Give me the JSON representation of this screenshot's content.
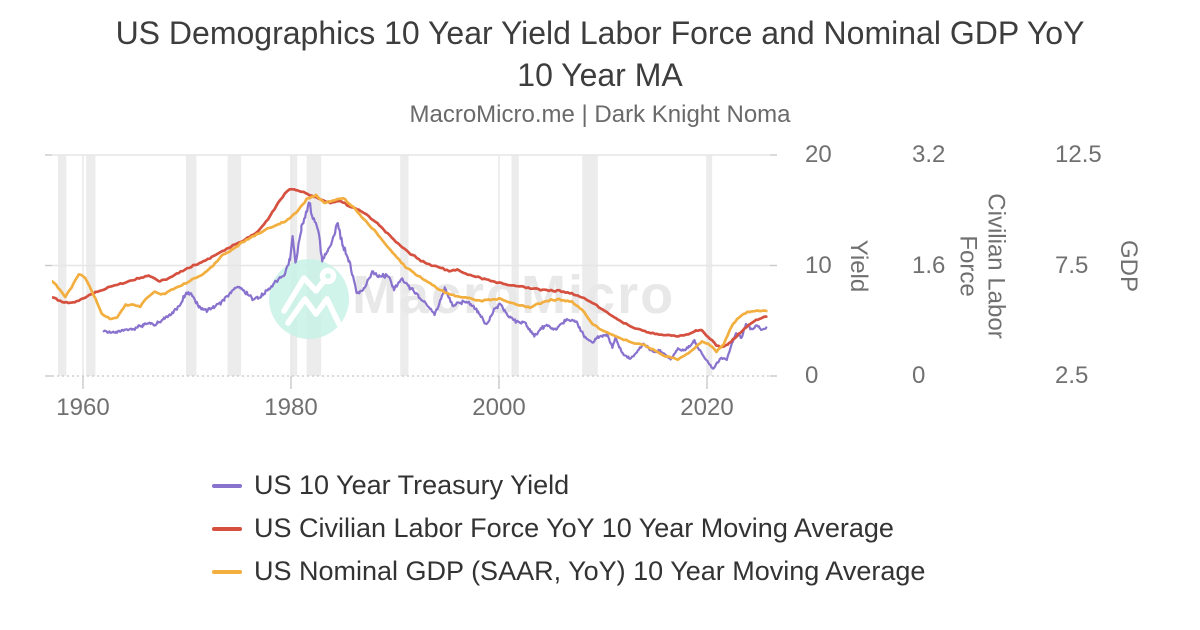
{
  "header": {
    "title": "US Demographics 10 Year Yield Labor Force and Nominal GDP YoY 10 Year MA",
    "subtitle": "MacroMicro.me | Dark Knight Noma"
  },
  "watermark": {
    "text": "MacroMicro",
    "icon": "mountain-peaks-with-sun-logo",
    "circle_color": "#c9f2e6",
    "text_color": "#e8e8e8"
  },
  "chart_data": {
    "type": "line",
    "title": "US Demographics 10 Year Yield Labor Force and Nominal GDP YoY 10 Year MA",
    "subtitle": "MacroMicro.me | Dark Knight Noma",
    "grid": true,
    "legend_position": "bottom",
    "x_axis": {
      "range": [
        1957.0,
        2026.1
      ],
      "tick_values": [
        1960,
        1980,
        2000,
        2020
      ],
      "tick_labels": [
        "1960",
        "1980",
        "2000",
        "2020"
      ]
    },
    "y_axes": [
      {
        "title": "Yield",
        "range": [
          0,
          20
        ],
        "tick_values": [
          20,
          10,
          0
        ],
        "tick_labels": [
          "20",
          "10",
          "0"
        ]
      },
      {
        "title": "Civilian Labor Force",
        "range": [
          0,
          3.2
        ],
        "tick_values": [
          3.2,
          1.6,
          0
        ],
        "tick_labels": [
          "3.2",
          "1.6",
          "0"
        ]
      },
      {
        "title": "GDP",
        "range": [
          2.5,
          12.5
        ],
        "tick_values": [
          12.5,
          7.5,
          2.5
        ],
        "tick_labels": [
          "12.5",
          "7.5",
          "2.5"
        ]
      }
    ],
    "recession_bands_years": [
      [
        1957.6,
        1958.4
      ],
      [
        1960.3,
        1961.2
      ],
      [
        1969.9,
        1970.9
      ],
      [
        1973.9,
        1975.2
      ],
      [
        1980.0,
        1980.6
      ],
      [
        1981.5,
        1982.9
      ],
      [
        1990.5,
        1991.3
      ],
      [
        2001.2,
        2001.9
      ],
      [
        2008.0,
        2009.5
      ],
      [
        2020.1,
        2020.5
      ]
    ],
    "series": [
      {
        "name": "US 10 Year Treasury Yield",
        "color": "#8872ce",
        "axis": 0,
        "style": "jagged",
        "points": [
          [
            1962,
            4.08
          ],
          [
            1963,
            3.95
          ],
          [
            1963.8,
            4.15
          ],
          [
            1964.8,
            4.2
          ],
          [
            1965.8,
            4.6
          ],
          [
            1966.4,
            4.85
          ],
          [
            1966.9,
            4.6
          ],
          [
            1967.6,
            5.1
          ],
          [
            1968.4,
            5.5
          ],
          [
            1969.3,
            6.3
          ],
          [
            1969.95,
            7.6
          ],
          [
            1970.5,
            7.3
          ],
          [
            1971.2,
            6.2
          ],
          [
            1971.9,
            6.0
          ],
          [
            1972.6,
            6.3
          ],
          [
            1973.6,
            6.9
          ],
          [
            1974.6,
            8.0
          ],
          [
            1975.3,
            7.9
          ],
          [
            1976.3,
            6.9
          ],
          [
            1977.3,
            7.3
          ],
          [
            1978.4,
            8.4
          ],
          [
            1979.4,
            9.2
          ],
          [
            1979.9,
            10.6
          ],
          [
            1980.15,
            12.7
          ],
          [
            1980.45,
            10.3
          ],
          [
            1981.0,
            13.3
          ],
          [
            1981.75,
            15.7
          ],
          [
            1982.2,
            14.2
          ],
          [
            1982.6,
            13.3
          ],
          [
            1983.0,
            10.5
          ],
          [
            1983.6,
            11.3
          ],
          [
            1984.5,
            13.7
          ],
          [
            1985.0,
            11.7
          ],
          [
            1985.6,
            10.4
          ],
          [
            1986.3,
            7.5
          ],
          [
            1987.0,
            7.8
          ],
          [
            1987.8,
            9.4
          ],
          [
            1988.4,
            9.0
          ],
          [
            1989.2,
            9.2
          ],
          [
            1989.9,
            7.9
          ],
          [
            1990.7,
            8.8
          ],
          [
            1991.5,
            7.9
          ],
          [
            1992.3,
            7.2
          ],
          [
            1993.0,
            6.5
          ],
          [
            1993.8,
            5.6
          ],
          [
            1994.8,
            7.9
          ],
          [
            1995.6,
            6.4
          ],
          [
            1996.4,
            6.7
          ],
          [
            1997.2,
            6.6
          ],
          [
            1997.9,
            5.9
          ],
          [
            1998.8,
            4.6
          ],
          [
            1999.6,
            6.1
          ],
          [
            2000.1,
            6.5
          ],
          [
            2000.9,
            5.4
          ],
          [
            2001.7,
            4.9
          ],
          [
            2002.4,
            4.9
          ],
          [
            2003.4,
            3.6
          ],
          [
            2004.0,
            4.3
          ],
          [
            2004.6,
            4.6
          ],
          [
            2005.4,
            4.2
          ],
          [
            2006.5,
            5.1
          ],
          [
            2007.4,
            4.9
          ],
          [
            2008.2,
            3.6
          ],
          [
            2008.9,
            3.0
          ],
          [
            2009.5,
            3.5
          ],
          [
            2010.4,
            3.8
          ],
          [
            2010.9,
            2.6
          ],
          [
            2011.2,
            3.4
          ],
          [
            2011.9,
            2.0
          ],
          [
            2012.6,
            1.55
          ],
          [
            2013.0,
            1.9
          ],
          [
            2013.9,
            2.9
          ],
          [
            2014.8,
            2.2
          ],
          [
            2015.5,
            2.3
          ],
          [
            2016.5,
            1.5
          ],
          [
            2017.2,
            2.45
          ],
          [
            2017.8,
            2.3
          ],
          [
            2018.8,
            3.15
          ],
          [
            2019.7,
            1.7
          ],
          [
            2020.6,
            0.65
          ],
          [
            2021.3,
            1.6
          ],
          [
            2021.9,
            1.5
          ],
          [
            2022.4,
            2.9
          ],
          [
            2022.8,
            3.9
          ],
          [
            2023.3,
            3.5
          ],
          [
            2023.8,
            4.7
          ],
          [
            2024.4,
            4.2
          ],
          [
            2024.8,
            4.5
          ],
          [
            2025.2,
            4.25
          ],
          [
            2025.7,
            4.4
          ]
        ]
      },
      {
        "name": "US Civilian Labor Force YoY 10 Year Moving Average",
        "color": "#d5503f",
        "axis": 1,
        "style": "smooth",
        "points": [
          [
            1957,
            1.14
          ],
          [
            1958,
            1.07
          ],
          [
            1959,
            1.06
          ],
          [
            1960,
            1.12
          ],
          [
            1961,
            1.2
          ],
          [
            1962,
            1.26
          ],
          [
            1963,
            1.31
          ],
          [
            1964,
            1.35
          ],
          [
            1965,
            1.4
          ],
          [
            1966.3,
            1.45
          ],
          [
            1967.4,
            1.37
          ],
          [
            1968.2,
            1.41
          ],
          [
            1969,
            1.48
          ],
          [
            1970,
            1.56
          ],
          [
            1971,
            1.62
          ],
          [
            1972,
            1.69
          ],
          [
            1973,
            1.77
          ],
          [
            1974,
            1.86
          ],
          [
            1975,
            1.93
          ],
          [
            1976,
            2.01
          ],
          [
            1977,
            2.12
          ],
          [
            1977.8,
            2.27
          ],
          [
            1978.6,
            2.47
          ],
          [
            1979.4,
            2.64
          ],
          [
            1979.9,
            2.71
          ],
          [
            1980.6,
            2.69
          ],
          [
            1981.4,
            2.65
          ],
          [
            1982.2,
            2.6
          ],
          [
            1983,
            2.55
          ],
          [
            1983.8,
            2.51
          ],
          [
            1984.8,
            2.53
          ],
          [
            1985.6,
            2.46
          ],
          [
            1986.5,
            2.41
          ],
          [
            1987.5,
            2.31
          ],
          [
            1988.5,
            2.18
          ],
          [
            1989.5,
            2.03
          ],
          [
            1990.5,
            1.89
          ],
          [
            1991.5,
            1.77
          ],
          [
            1992.5,
            1.67
          ],
          [
            1993.5,
            1.6
          ],
          [
            1994.4,
            1.57
          ],
          [
            1995.2,
            1.52
          ],
          [
            1996,
            1.54
          ],
          [
            1997,
            1.47
          ],
          [
            1998,
            1.43
          ],
          [
            1999,
            1.39
          ],
          [
            2000,
            1.35
          ],
          [
            2001,
            1.32
          ],
          [
            2002,
            1.3
          ],
          [
            2003,
            1.27
          ],
          [
            2004,
            1.25
          ],
          [
            2005,
            1.24
          ],
          [
            2006,
            1.23
          ],
          [
            2007,
            1.19
          ],
          [
            2008,
            1.14
          ],
          [
            2009,
            1.06
          ],
          [
            2010,
            0.96
          ],
          [
            2011,
            0.86
          ],
          [
            2012,
            0.77
          ],
          [
            2013,
            0.7
          ],
          [
            2014,
            0.65
          ],
          [
            2015,
            0.61
          ],
          [
            2016,
            0.59
          ],
          [
            2017,
            0.58
          ],
          [
            2018,
            0.59
          ],
          [
            2018.9,
            0.65
          ],
          [
            2019.5,
            0.66
          ],
          [
            2020.3,
            0.54
          ],
          [
            2020.9,
            0.45
          ],
          [
            2021.4,
            0.42
          ],
          [
            2022.1,
            0.47
          ],
          [
            2023,
            0.6
          ],
          [
            2024,
            0.74
          ],
          [
            2024.7,
            0.81
          ],
          [
            2025.7,
            0.86
          ]
        ]
      },
      {
        "name": "US Nominal GDP (SAAR, YoY) 10 Year Moving Average",
        "color": "#f2ae3e",
        "axis": 2,
        "style": "smooth",
        "points": [
          [
            1957,
            6.8
          ],
          [
            1957.6,
            6.5
          ],
          [
            1958.3,
            6.08
          ],
          [
            1958.9,
            6.5
          ],
          [
            1959.6,
            7.12
          ],
          [
            1960.2,
            6.95
          ],
          [
            1961,
            6.2
          ],
          [
            1961.8,
            5.35
          ],
          [
            1962.6,
            5.07
          ],
          [
            1963.3,
            5.15
          ],
          [
            1964.1,
            5.7
          ],
          [
            1964.9,
            5.72
          ],
          [
            1965.5,
            5.65
          ],
          [
            1966.2,
            6.05
          ],
          [
            1966.9,
            6.3
          ],
          [
            1967.7,
            6.2
          ],
          [
            1968.5,
            6.4
          ],
          [
            1969.5,
            6.6
          ],
          [
            1970.5,
            6.85
          ],
          [
            1971.5,
            7.1
          ],
          [
            1972.5,
            7.5
          ],
          [
            1973.5,
            8.0
          ],
          [
            1974.5,
            8.25
          ],
          [
            1975.5,
            8.6
          ],
          [
            1976.5,
            8.85
          ],
          [
            1977.5,
            9.1
          ],
          [
            1978.5,
            9.3
          ],
          [
            1979.5,
            9.5
          ],
          [
            1980.5,
            9.9
          ],
          [
            1981.6,
            10.55
          ],
          [
            1982.4,
            10.68
          ],
          [
            1983.2,
            10.35
          ],
          [
            1984.2,
            10.45
          ],
          [
            1985.0,
            10.55
          ],
          [
            1986.0,
            10.15
          ],
          [
            1987,
            9.6
          ],
          [
            1988,
            9.1
          ],
          [
            1989,
            8.5
          ],
          [
            1990,
            7.95
          ],
          [
            1991,
            7.45
          ],
          [
            1992,
            7.1
          ],
          [
            1993,
            6.8
          ],
          [
            1994,
            6.5
          ],
          [
            1995,
            6.25
          ],
          [
            1996,
            6.1
          ],
          [
            1997,
            6.05
          ],
          [
            1998,
            5.9
          ],
          [
            1999,
            5.95
          ],
          [
            2000,
            6.0
          ],
          [
            2001,
            5.85
          ],
          [
            2002,
            5.7
          ],
          [
            2003,
            5.6
          ],
          [
            2004,
            5.8
          ],
          [
            2005,
            5.95
          ],
          [
            2006,
            5.95
          ],
          [
            2007,
            5.85
          ],
          [
            2008,
            5.5
          ],
          [
            2009,
            4.85
          ],
          [
            2010,
            4.55
          ],
          [
            2011,
            4.35
          ],
          [
            2012,
            4.15
          ],
          [
            2013,
            4.0
          ],
          [
            2014,
            3.9
          ],
          [
            2015,
            3.65
          ],
          [
            2016,
            3.38
          ],
          [
            2017.2,
            3.27
          ],
          [
            2018,
            3.45
          ],
          [
            2018.8,
            3.75
          ],
          [
            2019.5,
            4.05
          ],
          [
            2020.1,
            3.98
          ],
          [
            2020.9,
            3.62
          ],
          [
            2021.6,
            3.95
          ],
          [
            2022.3,
            4.7
          ],
          [
            2022.9,
            5.1
          ],
          [
            2023.5,
            5.32
          ],
          [
            2024.2,
            5.42
          ],
          [
            2024.8,
            5.45
          ],
          [
            2025.7,
            5.44
          ]
        ]
      }
    ],
    "colors": {
      "gridline": "#e6e6e6",
      "recession_band": "#ececec",
      "axis_dotted_line": "#cfcfcf",
      "tick_mark": "#c9c9c9",
      "axis_text": "#707070",
      "title_text": "#3d3d3d",
      "subtitle_text": "#6a6a6a",
      "legend_text": "#333333"
    }
  }
}
